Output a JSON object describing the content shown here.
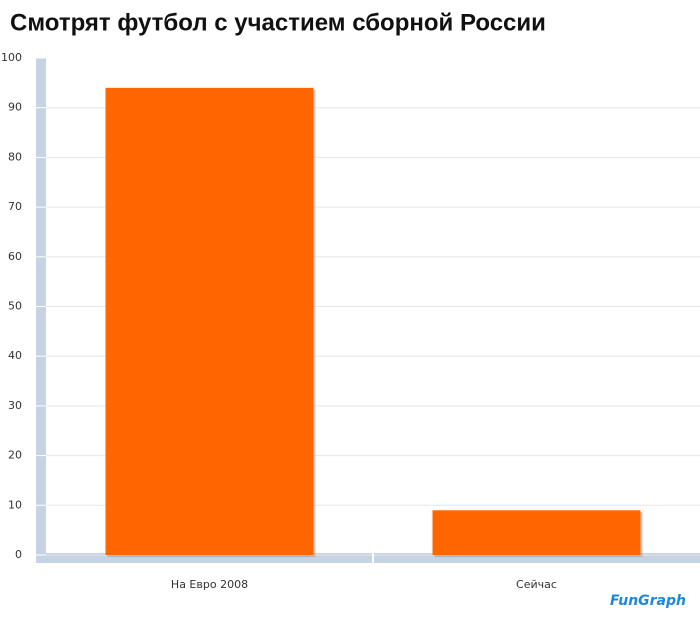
{
  "chart_data": {
    "type": "bar",
    "title": "Смотрят футбол с участием сборной России",
    "categories": [
      "На Евро 2008",
      "Сейчас"
    ],
    "values": [
      94,
      9
    ],
    "color": "#ff6600",
    "ylim": [
      0,
      100
    ],
    "yticks": [
      0,
      10,
      20,
      30,
      40,
      50,
      60,
      70,
      80,
      90,
      100
    ],
    "grid": true,
    "watermark": "FunGraph"
  }
}
